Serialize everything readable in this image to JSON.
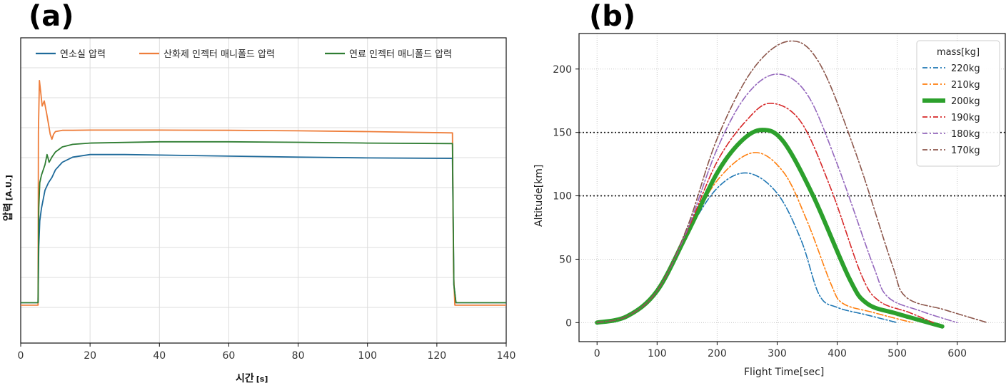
{
  "chart_data": [
    {
      "panel": "(a)",
      "type": "line",
      "xlabel": "시간",
      "xlabel_unit": "[s]",
      "ylabel": "압력",
      "ylabel_unit": "[A.U.]",
      "xlim": [
        0,
        140
      ],
      "xticks": [
        0,
        20,
        40,
        60,
        80,
        100,
        120,
        140
      ],
      "ylim": [
        0,
        100
      ],
      "yticks_labeled": false,
      "grid": true,
      "legend_position": "top",
      "series": [
        {
          "name": "연소실 압력",
          "color": "#1f6a9a",
          "x": [
            0,
            5,
            5.2,
            5.5,
            6,
            7,
            8,
            9,
            10,
            12,
            15,
            20,
            30,
            40,
            60,
            80,
            100,
            124.5,
            124.9,
            125.5,
            140
          ],
          "y": [
            8,
            8,
            30,
            40,
            45,
            52,
            55,
            57,
            60,
            63,
            65,
            66,
            66,
            65.8,
            65.4,
            65,
            64.7,
            64.5,
            15,
            8,
            8
          ]
        },
        {
          "name": "산화제 인젝터 매니폴드 압력",
          "color": "#ee7d3a",
          "x": [
            0,
            5,
            5.1,
            5.4,
            5.8,
            6.2,
            6.8,
            7.5,
            8,
            8.5,
            9,
            9.5,
            10,
            12,
            15,
            20,
            40,
            60,
            80,
            100,
            124.5,
            124.8,
            125.2,
            140
          ],
          "y": [
            7,
            7,
            75,
            95,
            90,
            85,
            87,
            82,
            78,
            74,
            72,
            74,
            75,
            75.5,
            75.5,
            75.6,
            75.6,
            75.5,
            75.3,
            75,
            74.5,
            20,
            7,
            7
          ]
        },
        {
          "name": "연료 인젝터 매니폴드 압력",
          "color": "#2f7d32",
          "x": [
            0,
            5,
            5.2,
            5.5,
            6,
            7,
            7.6,
            8.2,
            9,
            10,
            12,
            15,
            20,
            40,
            60,
            80,
            100,
            124.5,
            124.9,
            125.5,
            140
          ],
          "y": [
            8,
            8,
            45,
            55,
            58,
            62,
            66,
            63,
            65,
            67,
            69,
            70,
            70.5,
            71,
            71,
            70.8,
            70.5,
            70.3,
            15,
            8,
            8
          ]
        }
      ]
    },
    {
      "panel": "(b)",
      "type": "line",
      "xlabel": "Flight Time[sec]",
      "ylabel": "Altitude[km]",
      "xlim": [
        -30,
        680
      ],
      "ylim": [
        -15,
        228
      ],
      "xticks": [
        0,
        100,
        200,
        300,
        400,
        500,
        600
      ],
      "yticks": [
        0,
        50,
        100,
        150,
        200
      ],
      "hlines": [
        100,
        150
      ],
      "grid": true,
      "legend_title": "mass[kg]",
      "legend_position": "top-right",
      "series": [
        {
          "name": "220kg",
          "color": "#1f77b4",
          "dash": "dashdot",
          "width": 1.6,
          "x": [
            0,
            50,
            100,
            150,
            200,
            250,
            300,
            340,
            370,
            400,
            450,
            500
          ],
          "y": [
            0,
            5,
            25,
            70,
            106,
            118,
            102,
            65,
            22,
            12,
            6,
            0
          ]
        },
        {
          "name": "210kg",
          "color": "#ff7f0e",
          "dash": "dashdot",
          "width": 1.6,
          "x": [
            0,
            50,
            100,
            150,
            200,
            260,
            310,
            350,
            390,
            410,
            460,
            525
          ],
          "y": [
            0,
            5,
            25,
            70,
            112,
            134,
            119,
            80,
            30,
            15,
            8,
            0
          ]
        },
        {
          "name": "200kg",
          "color": "#2ca02c",
          "dash": "solid",
          "width": 6,
          "x": [
            0,
            50,
            100,
            150,
            200,
            240,
            275,
            310,
            360,
            420,
            450,
            500,
            575
          ],
          "y": [
            0,
            5,
            25,
            70,
            118,
            143,
            152,
            143,
            100,
            35,
            15,
            7,
            -3
          ]
        },
        {
          "name": "190kg",
          "color": "#d62728",
          "dash": "dashdot",
          "width": 1.6,
          "x": [
            0,
            50,
            100,
            150,
            200,
            250,
            290,
            340,
            390,
            440,
            470,
            520,
            560
          ],
          "y": [
            0,
            5,
            25,
            72,
            127,
            160,
            173,
            158,
            105,
            38,
            17,
            8,
            0
          ]
        },
        {
          "name": "180kg",
          "color": "#9467bd",
          "dash": "dashdot",
          "width": 1.6,
          "x": [
            0,
            50,
            100,
            150,
            200,
            250,
            300,
            350,
            400,
            460,
            485,
            540,
            600
          ],
          "y": [
            0,
            5,
            25,
            73,
            137,
            180,
            196,
            180,
            125,
            45,
            20,
            9,
            0
          ]
        },
        {
          "name": "170kg",
          "color": "#8c564b",
          "dash": "dashdot",
          "width": 1.6,
          "x": [
            0,
            50,
            100,
            150,
            200,
            260,
            320,
            370,
            430,
            490,
            515,
            580,
            650
          ],
          "y": [
            0,
            5,
            25,
            75,
            145,
            200,
            222,
            205,
            135,
            48,
            20,
            10,
            0
          ]
        }
      ]
    }
  ]
}
